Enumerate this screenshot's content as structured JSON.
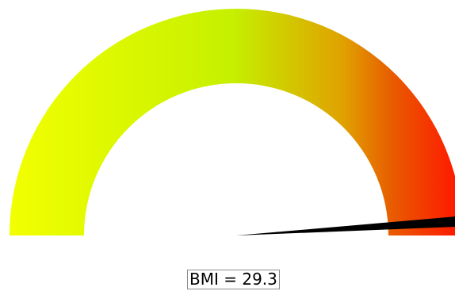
{
  "gauge": {
    "value": 29.3,
    "needle_fraction": 0.98,
    "gradient_colors": [
      "#f2ff00",
      "#c5f000",
      "#e0a000",
      "#e85a00",
      "#ff1a00"
    ],
    "needle_color": "#000000"
  },
  "readout": {
    "label": "BMI = 29.3"
  }
}
